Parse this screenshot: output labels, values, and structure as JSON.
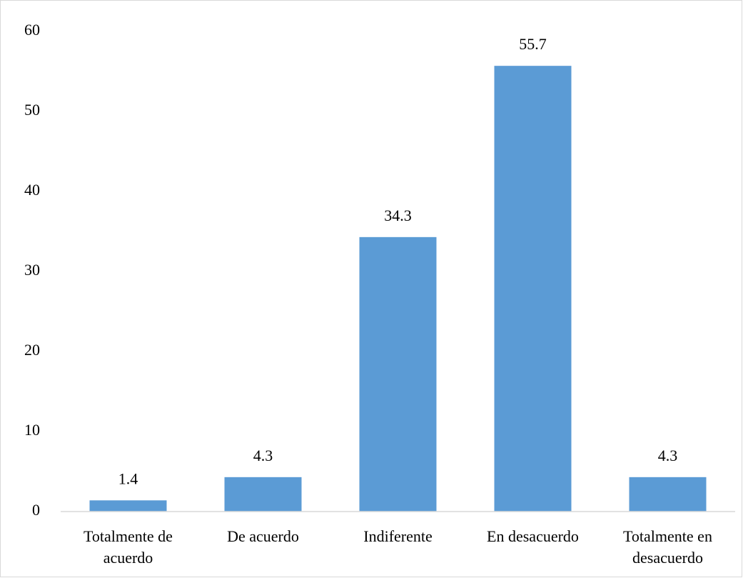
{
  "chart_data": {
    "type": "bar",
    "categories": [
      "Totalmente de acuerdo",
      "De acuerdo",
      "Indiferente",
      "En desacuerdo",
      "Totalmente en desacuerdo"
    ],
    "values": [
      1.4,
      4.3,
      34.3,
      55.7,
      4.3
    ],
    "color": "#5b9bd5",
    "ylim": [
      0,
      60
    ],
    "yticks": [
      0,
      10,
      20,
      30,
      40,
      50,
      60
    ],
    "grid": false
  }
}
